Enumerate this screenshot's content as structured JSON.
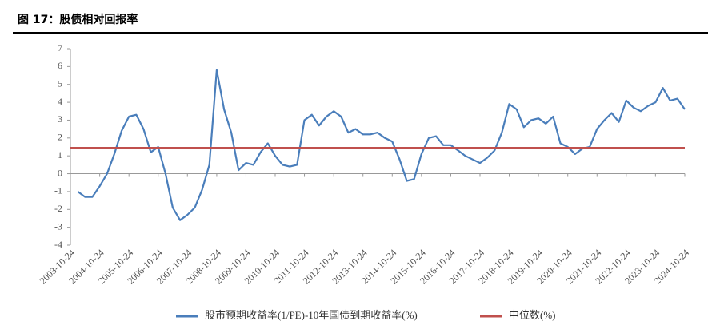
{
  "chart_data": {
    "type": "line",
    "title": "图 17：股债相对回报率",
    "x": [
      "2003-10-24",
      "2004-01-24",
      "2004-04-24",
      "2004-07-24",
      "2004-10-24",
      "2005-01-24",
      "2005-04-24",
      "2005-07-24",
      "2005-10-24",
      "2006-01-24",
      "2006-04-24",
      "2006-07-24",
      "2006-10-24",
      "2007-01-24",
      "2007-04-24",
      "2007-07-24",
      "2007-10-24",
      "2008-01-24",
      "2008-04-24",
      "2008-07-24",
      "2008-10-24",
      "2009-01-24",
      "2009-04-24",
      "2009-07-24",
      "2009-10-24",
      "2010-01-24",
      "2010-04-24",
      "2010-07-24",
      "2010-10-24",
      "2011-01-24",
      "2011-04-24",
      "2011-07-24",
      "2011-10-24",
      "2012-01-24",
      "2012-04-24",
      "2012-07-24",
      "2012-10-24",
      "2013-01-24",
      "2013-04-24",
      "2013-07-24",
      "2013-10-24",
      "2014-01-24",
      "2014-04-24",
      "2014-07-24",
      "2014-10-24",
      "2015-01-24",
      "2015-04-24",
      "2015-07-24",
      "2015-10-24",
      "2016-01-24",
      "2016-04-24",
      "2016-07-24",
      "2016-10-24",
      "2017-01-24",
      "2017-04-24",
      "2017-07-24",
      "2017-10-24",
      "2018-01-24",
      "2018-04-24",
      "2018-07-24",
      "2018-10-24",
      "2019-01-24",
      "2019-04-24",
      "2019-07-24",
      "2019-10-24",
      "2020-01-24",
      "2020-04-24",
      "2020-07-24",
      "2020-10-24",
      "2021-01-24",
      "2021-04-24",
      "2021-07-24",
      "2021-10-24",
      "2022-01-24",
      "2022-04-24",
      "2022-07-24",
      "2022-10-24",
      "2023-01-24",
      "2023-04-24",
      "2023-07-24",
      "2023-10-24",
      "2024-01-24",
      "2024-04-24",
      "2024-07-24",
      "2024-10-24"
    ],
    "series": [
      {
        "name": "股市预期收益率(1/PE)-10年国债到期收益率(%)",
        "color": "#4a7ebb",
        "values": [
          null,
          -1.0,
          -1.3,
          -1.3,
          -0.7,
          0,
          1.1,
          2.4,
          3.2,
          3.3,
          2.5,
          1.2,
          1.5,
          0,
          -1.9,
          -2.6,
          -2.3,
          -1.9,
          -0.9,
          0.5,
          5.8,
          3.6,
          2.3,
          0.2,
          0.6,
          0.5,
          1.2,
          1.7,
          1.0,
          0.5,
          0.4,
          0.5,
          3.0,
          3.3,
          2.7,
          3.2,
          3.5,
          3.2,
          2.3,
          2.5,
          2.2,
          2.2,
          2.3,
          2.0,
          1.8,
          0.8,
          -0.4,
          -0.3,
          1.1,
          2.0,
          2.1,
          1.6,
          1.6,
          1.3,
          1.0,
          0.8,
          0.6,
          0.9,
          1.3,
          2.3,
          3.9,
          3.6,
          2.6,
          3.0,
          3.1,
          2.8,
          3.2,
          1.7,
          1.5,
          1.1,
          1.4,
          1.5,
          2.5,
          3.0,
          3.4,
          2.9,
          4.1,
          3.7,
          3.5,
          3.8,
          4.0,
          4.8,
          4.1,
          4.2,
          3.6
        ]
      },
      {
        "name": "中位数(%)",
        "color": "#c0504d",
        "value": 1.45
      }
    ],
    "xticks": [
      "2003-10-24",
      "2004-10-24",
      "2005-10-24",
      "2006-10-24",
      "2007-10-24",
      "2008-10-24",
      "2009-10-24",
      "2010-10-24",
      "2011-10-24",
      "2012-10-24",
      "2013-10-24",
      "2014-10-24",
      "2015-10-24",
      "2016-10-24",
      "2017-10-24",
      "2018-10-24",
      "2019-10-24",
      "2020-10-24",
      "2021-10-24",
      "2022-10-24",
      "2023-10-24",
      "2024-10-24"
    ],
    "ylim": [
      -4,
      7
    ],
    "yticks": [
      -4,
      -3,
      -2,
      -1,
      0,
      1,
      2,
      3,
      4,
      5,
      6,
      7
    ],
    "grid": false
  }
}
